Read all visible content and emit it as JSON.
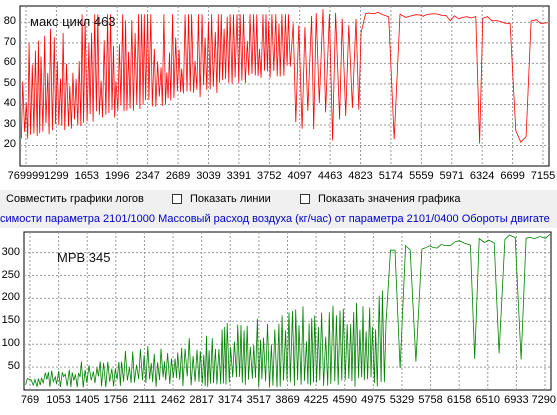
{
  "controls": {
    "combine_logs_label": "Совместить графики логов",
    "show_lines_label": "Показать линии",
    "show_values_label": "Показать значения графика"
  },
  "chart_data": [
    {
      "type": "line",
      "legend": "макс цикл 463",
      "color": "#ff0000",
      "ylim": [
        10,
        88
      ],
      "yticks": [
        "20",
        "30",
        "40",
        "50",
        "60",
        "70",
        "80"
      ],
      "xticks": [
        "769999",
        "1299",
        "1653",
        "1996",
        "2347",
        "2689",
        "3039",
        "3391",
        "3752",
        "4097",
        "4463",
        "4823",
        "5174",
        "5559",
        "5971",
        "6324",
        "6699",
        "7155"
      ],
      "grid": true
    },
    {
      "type": "line",
      "title": "симости параметра 2101/1000 Массовый расход воздуха (кг/час) от параметра 2101/0400 Обороты  двигате",
      "legend": "МРВ 345",
      "color": "#008000",
      "ylim": [
        0,
        345
      ],
      "yticks": [
        "50",
        "100",
        "150",
        "200",
        "250",
        "300"
      ],
      "xticks": [
        "769",
        "1053",
        "1405",
        "1756",
        "2111",
        "2462",
        "2817",
        "3174",
        "3517",
        "3869",
        "4225",
        "4590",
        "4975",
        "5329",
        "5758",
        "6158",
        "6510",
        "6933",
        "7290"
      ],
      "grid": true
    }
  ]
}
